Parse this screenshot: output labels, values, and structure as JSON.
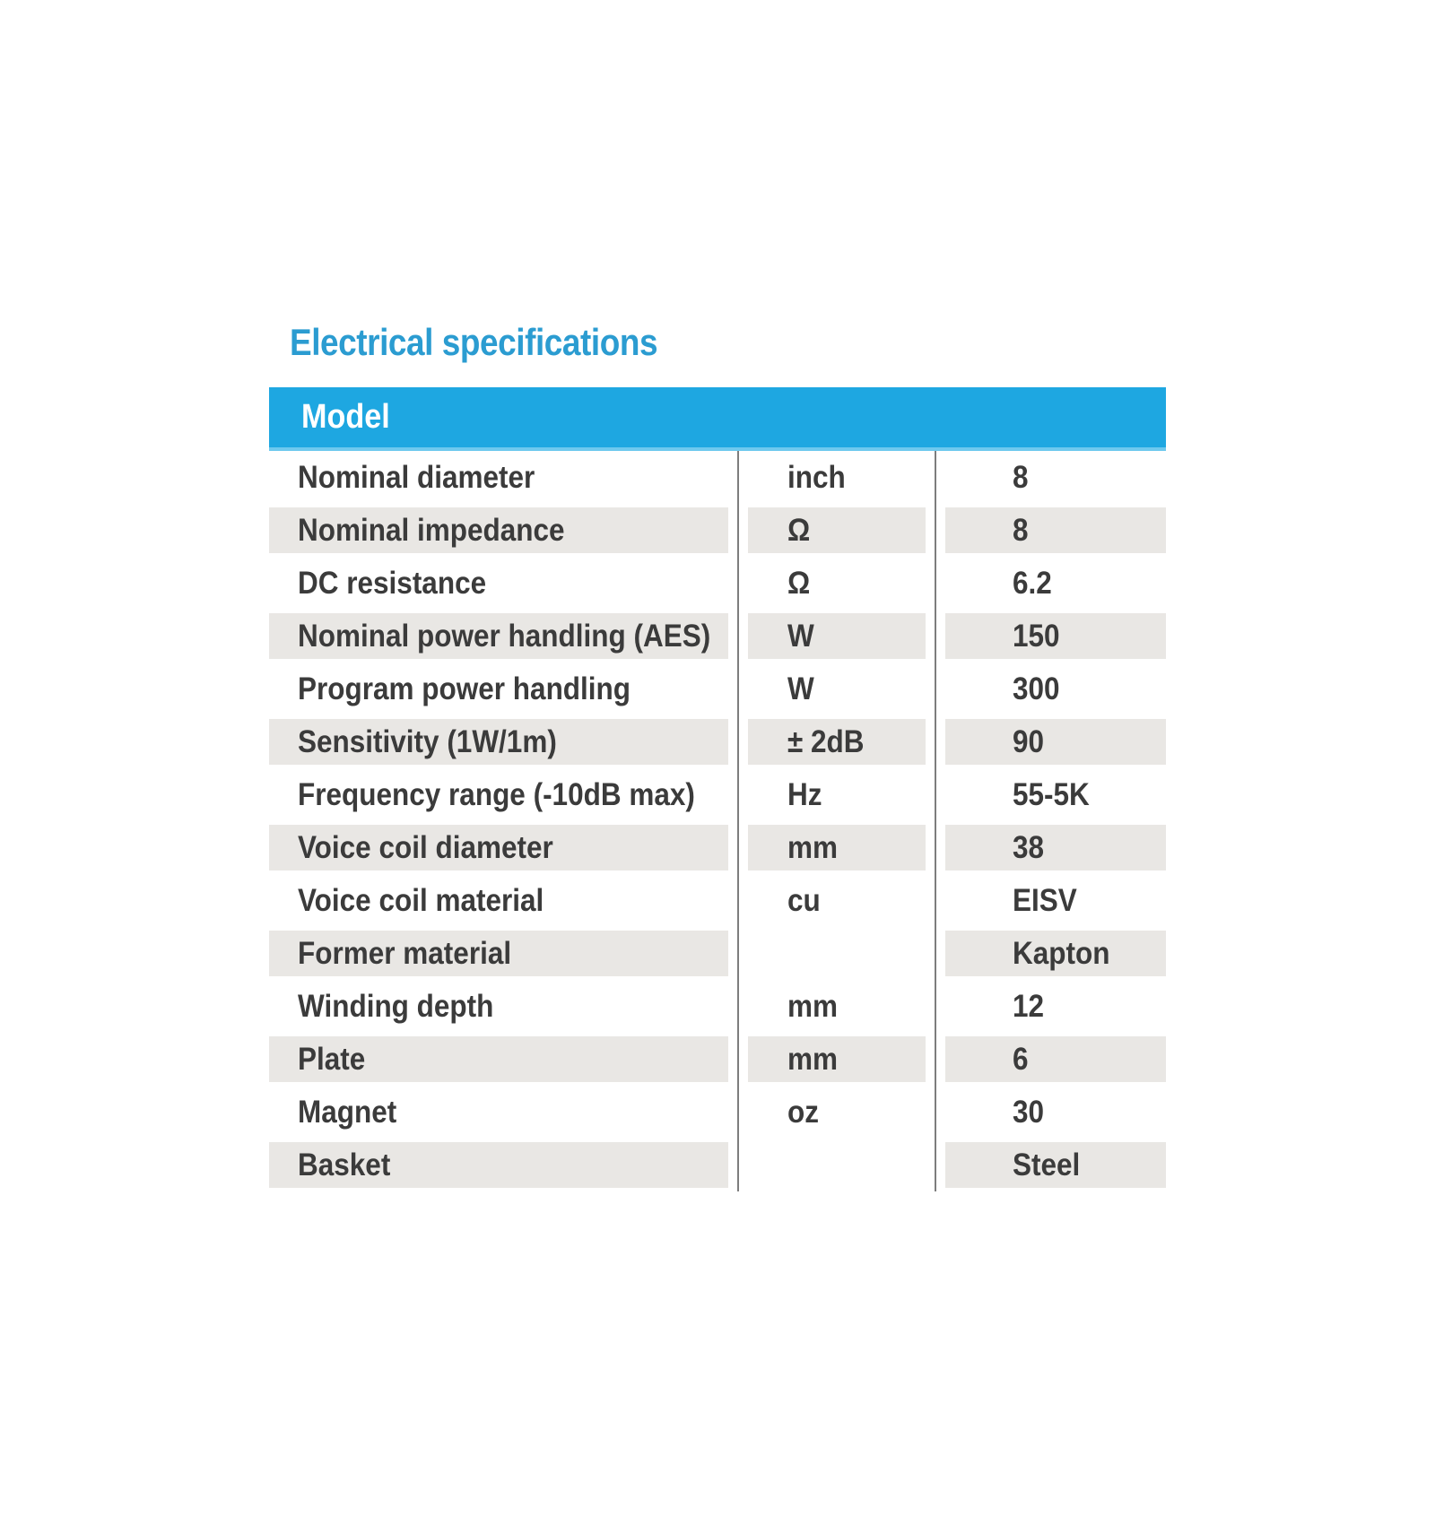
{
  "title": "Electrical specifications",
  "table": {
    "header": {
      "label": "Model"
    },
    "rows": [
      {
        "parameter": "Nominal diameter",
        "unit": "inch",
        "value": "8"
      },
      {
        "parameter": "Nominal impedance",
        "unit": "Ω",
        "value": "8"
      },
      {
        "parameter": "DC resistance",
        "unit": "Ω",
        "value": "6.2"
      },
      {
        "parameter": "Nominal power handling (AES)",
        "unit": "W",
        "value": "150"
      },
      {
        "parameter": "Program power handling",
        "unit": "W",
        "value": "300"
      },
      {
        "parameter": "Sensitivity (1W/1m)",
        "unit": "± 2dB",
        "value": "90"
      },
      {
        "parameter": "Frequency range (-10dB max)",
        "unit": "Hz",
        "value": "55-5K"
      },
      {
        "parameter": "Voice coil diameter",
        "unit": "mm",
        "value": "38"
      },
      {
        "parameter": "Voice coil material",
        "unit": "cu",
        "value": "EISV"
      },
      {
        "parameter": "Former material",
        "unit": "",
        "value": "Kapton"
      },
      {
        "parameter": "Winding depth",
        "unit": "mm",
        "value": "12"
      },
      {
        "parameter": "Plate",
        "unit": "mm",
        "value": "6"
      },
      {
        "parameter": "Magnet",
        "unit": "oz",
        "value": "30"
      },
      {
        "parameter": "Basket",
        "unit": "",
        "value": "Steel"
      }
    ],
    "colors": {
      "header_bg": "#1ea7e1",
      "header_edge": "#6ec9ee",
      "header_text": "#ffffff",
      "title_color": "#2b9cd1",
      "stripe_bg": "#e9e7e4",
      "separator": "#7d7d7d",
      "text_color": "#3b3b3b"
    }
  }
}
